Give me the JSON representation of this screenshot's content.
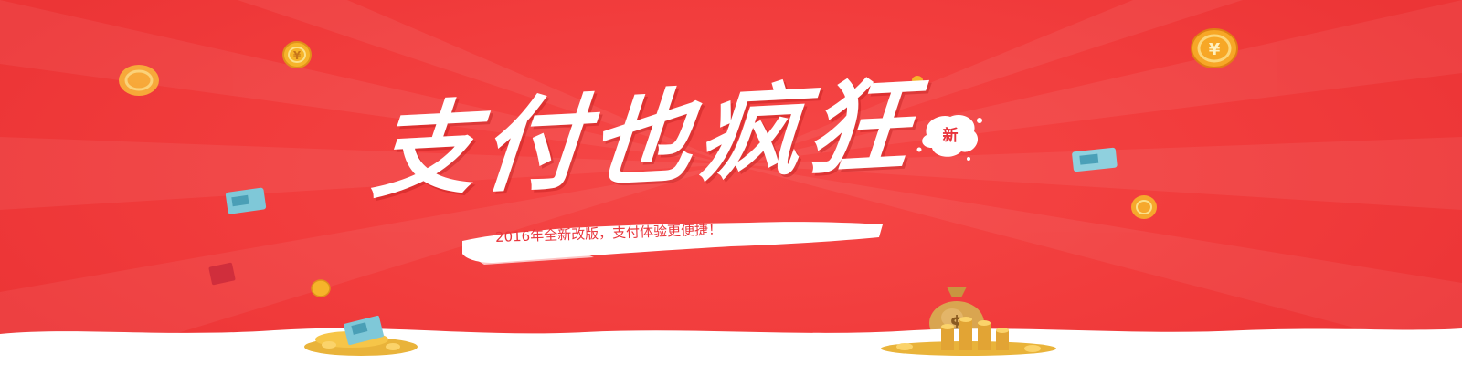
{
  "banner": {
    "headline": "支付也疯狂",
    "new_badge": "新",
    "subtitle": "2016年全新改版，支付体验更便捷！",
    "colors": {
      "background": "#f2403f",
      "headline": "#ffffff",
      "accent_text": "#e8363c",
      "coin_gold": "#f6b42a"
    },
    "icons": [
      "yen-coin-icon",
      "gold-coin-icon",
      "money-card-icon",
      "money-bag-icon",
      "coin-pile-icon",
      "red-envelope-icon"
    ]
  }
}
